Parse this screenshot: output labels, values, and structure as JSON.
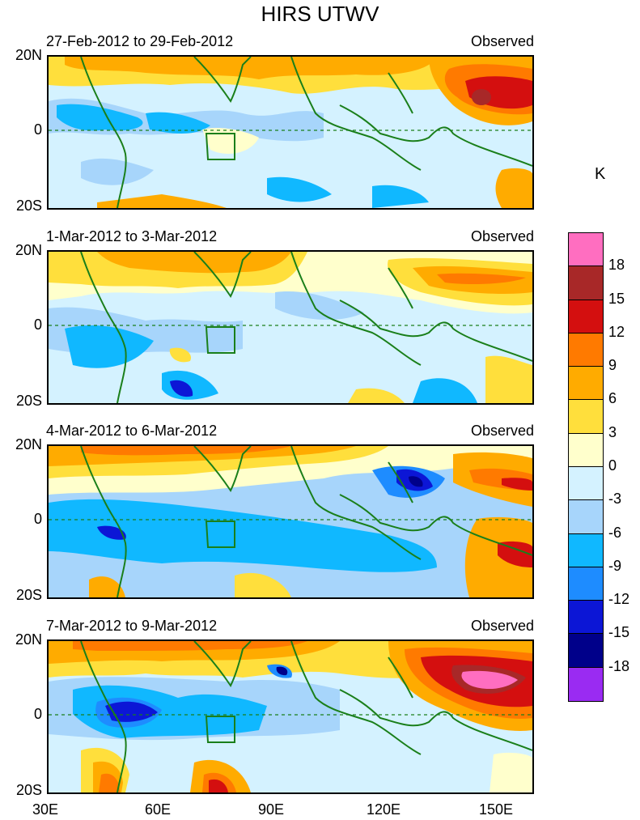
{
  "title": "HIRS UTWV",
  "unit": "K",
  "colors": {
    "coast": "#1a7f1a",
    "equator": "#1a7f1a"
  },
  "panels": [
    {
      "date_range": "27-Feb-2012 to 29-Feb-2012",
      "tag": "Observed"
    },
    {
      "date_range": "1-Mar-2012 to 3-Mar-2012",
      "tag": "Observed"
    },
    {
      "date_range": "4-Mar-2012 to 6-Mar-2012",
      "tag": "Observed"
    },
    {
      "date_range": "7-Mar-2012 to 9-Mar-2012",
      "tag": "Observed"
    }
  ],
  "lat_labels": [
    "20N",
    "0",
    "20S"
  ],
  "lon_labels": [
    "30E",
    "60E",
    "90E",
    "120E",
    "150E"
  ],
  "colorbar": {
    "labels": [
      "18",
      "15",
      "12",
      "9",
      "6",
      "3",
      "0",
      "-3",
      "-6",
      "-9",
      "-12",
      "-15",
      "-18"
    ],
    "colors": [
      "#ff6ec0",
      "#a82828",
      "#d40f0f",
      "#ff7a00",
      "#ffab00",
      "#ffdf3c",
      "#ffffcc",
      "#d4f2ff",
      "#a7d5fb",
      "#10b8ff",
      "#1e8cff",
      "#0c16d6",
      "#00008a",
      "#9a2bf2"
    ]
  }
}
